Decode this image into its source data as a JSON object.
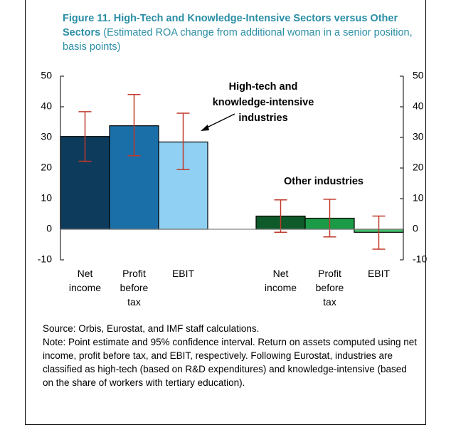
{
  "chart_data": {
    "type": "bar",
    "title": "Figure 11. High-Tech and Knowledge-Intensive Sectors versus Other Sectors",
    "subtitle": "(Estimated ROA change from additional woman in a senior position, basis points)",
    "categories": [
      "Net income",
      "Profit before tax",
      "EBIT",
      "Net income",
      "Profit before tax",
      "EBIT"
    ],
    "values": [
      30.3,
      33.8,
      28.5,
      4.3,
      3.6,
      -1.0
    ],
    "ci_low": [
      22.2,
      24.0,
      19.5,
      -1.0,
      -2.5,
      -6.5
    ],
    "ci_high": [
      38.4,
      44.0,
      37.9,
      9.6,
      9.8,
      4.3
    ],
    "colors": [
      "#0d3b5c",
      "#1b6fa8",
      "#90d0f2",
      "#0e5a2a",
      "#1b9a48",
      "#45c06b"
    ],
    "annotations": [
      "High-tech and knowledge-intensive industries",
      "Other industries"
    ],
    "ylim": [
      -10,
      50
    ],
    "yticks": [
      -10,
      0,
      10,
      20,
      30,
      40,
      50
    ],
    "source": "Source: Orbis, Eurostat, and IMF staff calculations.",
    "note": "Note: Point estimate and 95% confidence interval. Return on assets computed using net income, profit before tax, and EBIT, respectively. Following Eurostat, industries are classified as high-tech (based on R&D expenditures) and knowledge-intensive (based on the share of workers with tertiary education)."
  }
}
